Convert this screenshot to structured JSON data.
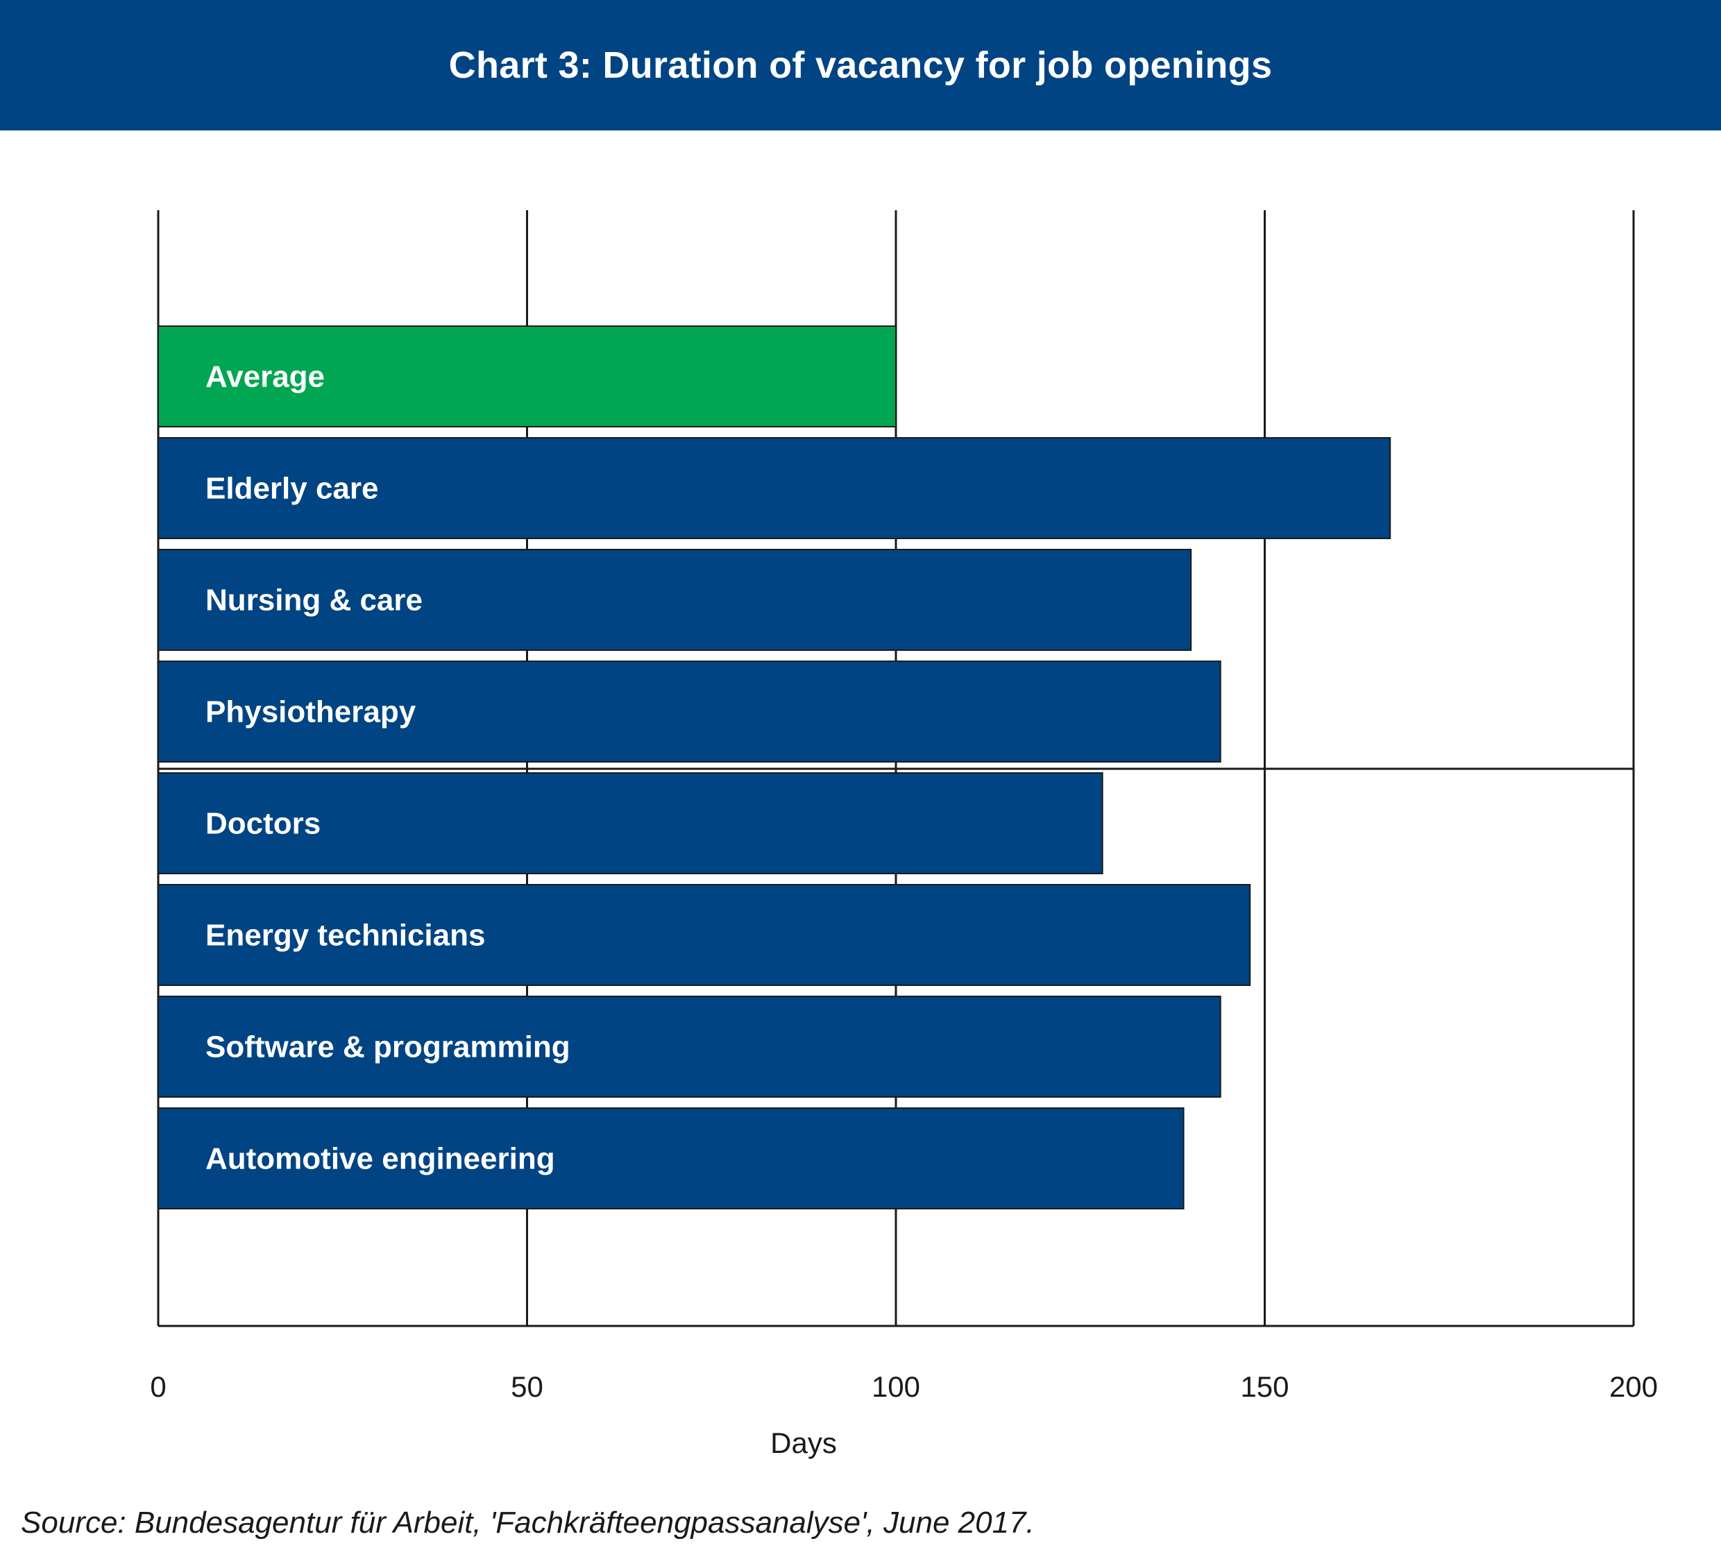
{
  "chart_data": {
    "type": "bar",
    "orientation": "horizontal",
    "title": "Chart 3: Duration of vacancy for job openings",
    "xlabel": "Days",
    "ylabel": "",
    "xlim": [
      0,
      200
    ],
    "xticks": [
      "0",
      "50",
      "100",
      "150",
      "200"
    ],
    "grid": true,
    "categories": [
      "Average",
      "Elderly care",
      "Nursing & care",
      "Physiotherapy",
      "Doctors",
      "Energy technicians",
      "Software & programming",
      "Automotive engineering"
    ],
    "values": [
      100,
      167,
      140,
      144,
      128,
      148,
      144,
      139
    ],
    "bar_colors": [
      "#00a651",
      "#004483",
      "#004483",
      "#004483",
      "#004483",
      "#004483",
      "#004483",
      "#004483"
    ],
    "annotations": []
  },
  "source": "Source: Bundesagentur für Arbeit, 'Fachkräfteengpassanalyse', June 2017.",
  "colors": {
    "header_bg": "#004483",
    "highlight": "#00a651",
    "bar": "#004483",
    "axis": "#1a1a1a"
  }
}
